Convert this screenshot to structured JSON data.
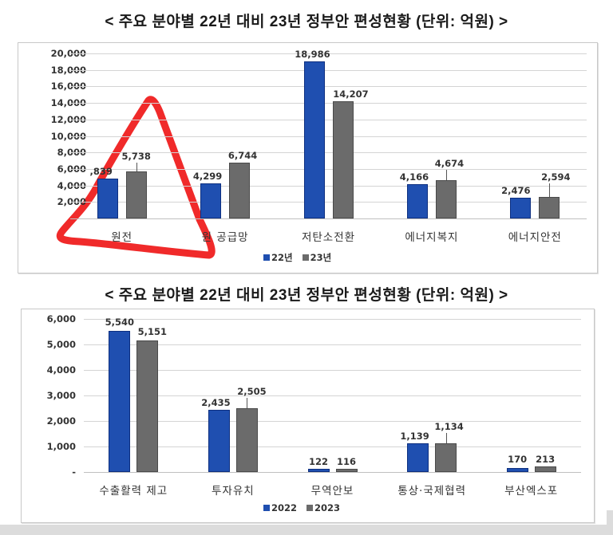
{
  "titles": [
    "< 주요 분야별 22년 대비 23년 정부안 편성현황 (단위: 억원) >",
    "< 주요 분야별 22년 대비 23년 정부안 편성현황 (단위: 억원) >"
  ],
  "colors": {
    "series_2022": "#1f4fb0",
    "series_2023": "#6b6b6b",
    "annotation": "#f02a2a"
  },
  "chart1": {
    "yticks": [
      "20,000",
      "18,000",
      "16,000",
      "14,000",
      "12,000",
      "10,000",
      "8,000",
      "6,000",
      "4,000",
      "2,000"
    ],
    "categories": [
      "원전",
      "원 공급망",
      "저탄소전환",
      "에너지복지",
      "에너지안전"
    ],
    "labels_22": [
      ",839",
      "4,299",
      "18,986",
      "4,166",
      "2,476"
    ],
    "labels_23": [
      "5,738",
      "6,744",
      "14,207",
      "4,674",
      "2,594"
    ],
    "legend": [
      "22년",
      "23년"
    ]
  },
  "chart2": {
    "yticks": [
      "6,000",
      "5,000",
      "4,000",
      "3,000",
      "2,000",
      "1,000",
      "-"
    ],
    "categories": [
      "수출활력 제고",
      "투자유치",
      "무역안보",
      "통상·국제협력",
      "부산엑스포"
    ],
    "labels_22": [
      "5,540",
      "2,435",
      "122",
      "1,139",
      "170"
    ],
    "labels_23": [
      "5,151",
      "2,505",
      "116",
      "1,134",
      "213"
    ],
    "legend": [
      "2022",
      "2023"
    ]
  },
  "annotation": {
    "shape": "hand-drawn-red-triangle",
    "highlights": "원전"
  },
  "chart_data": [
    {
      "type": "bar",
      "title": "< 주요 분야별 22년 대비 23년 정부안 편성현황 (단위: 억원) >",
      "xlabel": "",
      "ylabel": "억원",
      "ylim": [
        0,
        20000
      ],
      "grid": true,
      "legend_position": "bottom",
      "categories": [
        "원전",
        "원 공급망",
        "저탄소전환",
        "에너지복지",
        "에너지안전"
      ],
      "series": [
        {
          "name": "22년",
          "values": [
            4839,
            4299,
            18986,
            4166,
            2476
          ]
        },
        {
          "name": "23년",
          "values": [
            5738,
            6744,
            14207,
            4674,
            2594
          ]
        }
      ],
      "annotations": [
        "Red hand-drawn triangle circling 원전 bars"
      ]
    },
    {
      "type": "bar",
      "title": "< 주요 분야별 22년 대비 23년 정부안 편성현황 (단위: 억원) >",
      "xlabel": "",
      "ylabel": "억원",
      "ylim": [
        0,
        6000
      ],
      "grid": true,
      "legend_position": "bottom",
      "categories": [
        "수출활력 제고",
        "투자유치",
        "무역안보",
        "통상·국제협력",
        "부산엑스포"
      ],
      "series": [
        {
          "name": "2022",
          "values": [
            5540,
            2435,
            122,
            1139,
            170
          ]
        },
        {
          "name": "2023",
          "values": [
            5151,
            2505,
            116,
            1134,
            213
          ]
        }
      ]
    }
  ]
}
